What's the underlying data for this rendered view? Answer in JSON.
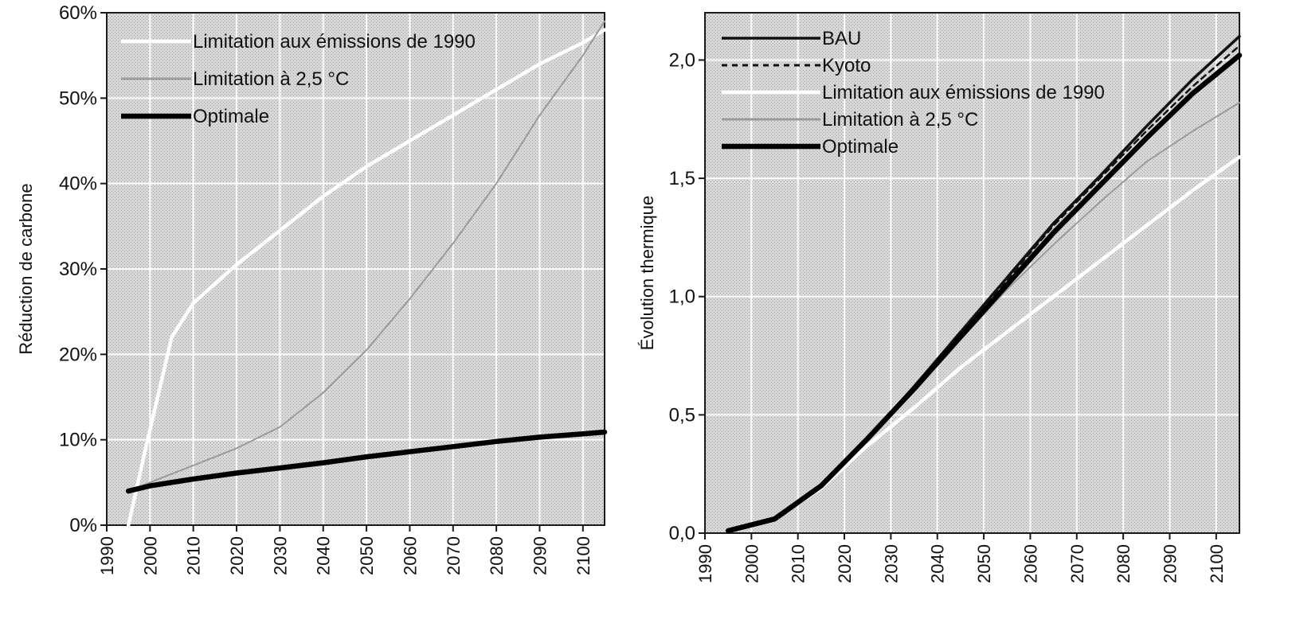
{
  "colors": {
    "background_fill": "#d2d2d2",
    "grid": "#ffffff",
    "bau": "#111111",
    "kyoto": "#111111",
    "limit_1990": "#ffffff",
    "limit_25": "#9a9a9a",
    "optimale": "#000000"
  },
  "chart_data": [
    {
      "type": "line",
      "ylabel": "Réduction de carbone",
      "xlabel": "",
      "xlim": [
        1990,
        2105
      ],
      "ylim": [
        0,
        60
      ],
      "x_ticks": [
        "1990",
        "2000",
        "2010",
        "2020",
        "2030",
        "2040",
        "2050",
        "2060",
        "2070",
        "2080",
        "2090",
        "2100"
      ],
      "y_ticks": [
        "0%",
        "10%",
        "20%",
        "30%",
        "40%",
        "50%",
        "60%"
      ],
      "grid": true,
      "legend_position": "top-left",
      "legend": [
        "Limitation aux émissions de 1990",
        "Limitation à 2,5 °C",
        "Optimale"
      ],
      "series": [
        {
          "name": "Limitation aux émissions de 1990",
          "style": "white-thick",
          "x": [
            1995,
            1999,
            2005,
            2010,
            2020,
            2030,
            2040,
            2050,
            2060,
            2070,
            2080,
            2090,
            2100,
            2105
          ],
          "y": [
            0,
            9,
            22,
            26,
            30.5,
            34.5,
            38.5,
            42,
            45,
            48,
            51,
            54,
            56.5,
            58
          ]
        },
        {
          "name": "Limitation à 2,5 °C",
          "style": "gray-thin",
          "x": [
            1995,
            2000,
            2010,
            2020,
            2030,
            2040,
            2050,
            2060,
            2070,
            2080,
            2090,
            2100,
            2105
          ],
          "y": [
            4,
            5,
            7,
            9,
            11.5,
            15.5,
            20.5,
            26.5,
            33,
            40,
            48,
            55,
            59
          ]
        },
        {
          "name": "Optimale",
          "style": "black-thick",
          "x": [
            1995,
            2000,
            2010,
            2020,
            2030,
            2040,
            2050,
            2060,
            2070,
            2080,
            2090,
            2100,
            2105
          ],
          "y": [
            4,
            4.6,
            5.4,
            6.1,
            6.7,
            7.3,
            8,
            8.6,
            9.2,
            9.8,
            10.3,
            10.7,
            10.9
          ]
        }
      ]
    },
    {
      "type": "line",
      "ylabel": "Évolution thermique",
      "xlabel": "",
      "xlim": [
        1990,
        2105
      ],
      "ylim": [
        0,
        2.2
      ],
      "x_ticks": [
        "1990",
        "2000",
        "2010",
        "2020",
        "2030",
        "2040",
        "2050",
        "2060",
        "2070",
        "2080",
        "2090",
        "2100"
      ],
      "y_ticks": [
        "0,0",
        "0,5",
        "1,0",
        "1,5",
        "2,0"
      ],
      "grid": true,
      "legend_position": "top-left",
      "legend": [
        "BAU",
        "Kyoto",
        "Limitation aux émissions de 1990",
        "Limitation à 2,5 °C",
        "Optimale"
      ],
      "series": [
        {
          "name": "BAU",
          "style": "black-medium",
          "x": [
            1995,
            2005,
            2015,
            2025,
            2035,
            2045,
            2055,
            2065,
            2075,
            2085,
            2095,
            2105
          ],
          "y": [
            0.01,
            0.06,
            0.2,
            0.4,
            0.62,
            0.85,
            1.08,
            1.31,
            1.51,
            1.72,
            1.92,
            2.1
          ]
        },
        {
          "name": "Kyoto",
          "style": "black-dashed",
          "x": [
            1995,
            2005,
            2015,
            2025,
            2035,
            2045,
            2055,
            2065,
            2075,
            2085,
            2095,
            2105
          ],
          "y": [
            0.01,
            0.06,
            0.2,
            0.4,
            0.62,
            0.84,
            1.07,
            1.3,
            1.5,
            1.7,
            1.89,
            2.06
          ]
        },
        {
          "name": "Limitation aux émissions de 1990",
          "style": "white-thick",
          "x": [
            1995,
            2005,
            2015,
            2025,
            2035,
            2045,
            2055,
            2065,
            2075,
            2085,
            2095,
            2105
          ],
          "y": [
            0.01,
            0.06,
            0.19,
            0.37,
            0.53,
            0.7,
            0.85,
            1.0,
            1.15,
            1.3,
            1.45,
            1.59
          ]
        },
        {
          "name": "Limitation à 2,5 °C",
          "style": "gray-thin",
          "x": [
            1995,
            2005,
            2015,
            2025,
            2035,
            2045,
            2055,
            2065,
            2075,
            2085,
            2095,
            2105
          ],
          "y": [
            0.01,
            0.06,
            0.2,
            0.4,
            0.61,
            0.82,
            1.03,
            1.22,
            1.4,
            1.57,
            1.7,
            1.82
          ]
        },
        {
          "name": "Optimale",
          "style": "black-thick",
          "x": [
            1995,
            2005,
            2015,
            2025,
            2035,
            2045,
            2055,
            2065,
            2075,
            2085,
            2095,
            2105
          ],
          "y": [
            0.01,
            0.06,
            0.2,
            0.4,
            0.61,
            0.83,
            1.05,
            1.27,
            1.47,
            1.67,
            1.86,
            2.02
          ]
        }
      ]
    }
  ]
}
